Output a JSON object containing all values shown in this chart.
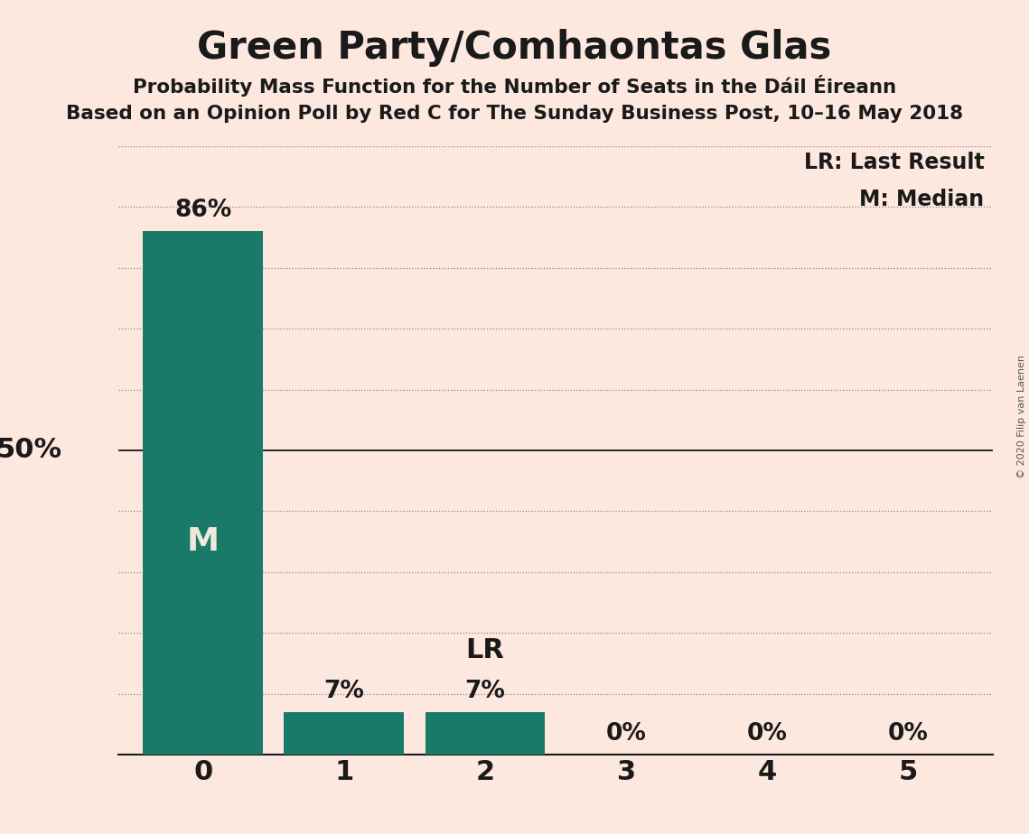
{
  "title": "Green Party/Comhaontas Glas",
  "subtitle1": "Probability Mass Function for the Number of Seats in the Dáil Éireann",
  "subtitle2": "Based on an Opinion Poll by Red C for The Sunday Business Post, 10–16 May 2018",
  "categories": [
    0,
    1,
    2,
    3,
    4,
    5
  ],
  "values": [
    86,
    7,
    7,
    0,
    0,
    0
  ],
  "bar_color": "#1a7a6a",
  "background_color": "#fde8df",
  "title_fontsize": 30,
  "subtitle_fontsize": 15.5,
  "bar_label_fontsize": 19,
  "axis_label_fontsize": 22,
  "tick_fontsize": 22,
  "annotation_M_fontsize": 26,
  "annotation_LR_fontsize": 22,
  "legend_fontsize": 17,
  "copyright_text": "© 2020 Filip van Laenen",
  "legend_lr": "LR: Last Result",
  "legend_m": "M: Median",
  "fifty_pct_label": "50%",
  "ylim": [
    0,
    100
  ],
  "ytick_lines": [
    10,
    20,
    30,
    40,
    50,
    60,
    70,
    80,
    90,
    100
  ],
  "median_seat": 0,
  "last_result_seat": 2,
  "bar_width": 0.85
}
